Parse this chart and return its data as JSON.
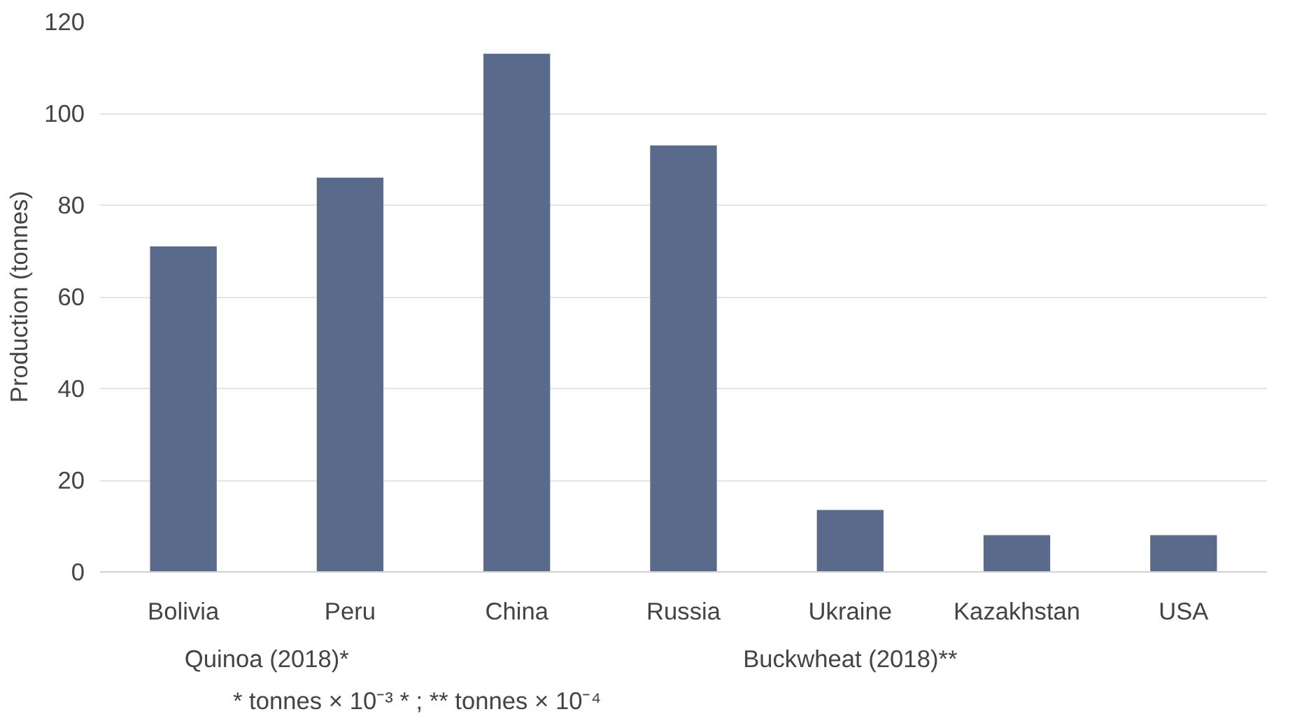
{
  "chart_data": {
    "type": "bar",
    "categories": [
      "Bolivia",
      "Peru",
      "China",
      "Russia",
      "Ukraine",
      "Kazakhstan",
      "USA"
    ],
    "values": [
      71,
      86,
      113,
      93,
      13.5,
      8,
      8
    ],
    "color": "#5a6a8a",
    "ylabel": "Production (tonnes)",
    "ylim": [
      0,
      120
    ],
    "yticks": [
      0,
      20,
      40,
      60,
      80,
      100,
      120
    ],
    "grid": "y",
    "annotations": [
      "Quinoa (2018)*",
      "Buckwheat (2018)**",
      "* tonnes × 10⁻³ * ; ** tonnes × 10⁻⁴"
    ]
  }
}
